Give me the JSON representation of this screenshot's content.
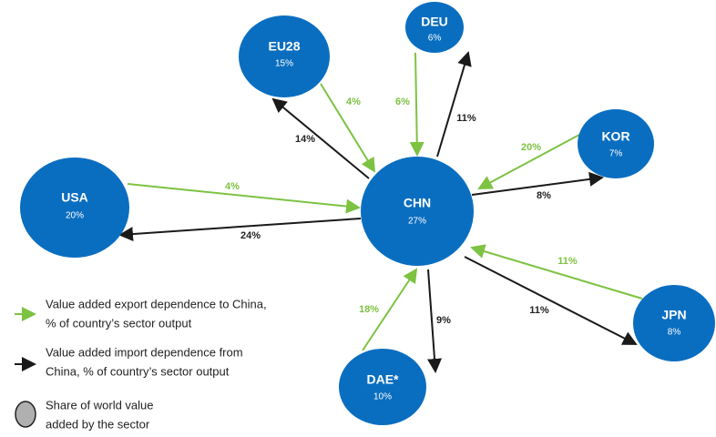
{
  "nodes": [
    {
      "label": "EU28",
      "value": "15%"
    },
    {
      "label": "DEU",
      "value": "6%"
    },
    {
      "label": "KOR",
      "value": "7%"
    },
    {
      "label": "USA",
      "value": "20%"
    },
    {
      "label": "CHN",
      "value": "27%"
    },
    {
      "label": "JPN",
      "value": "8%"
    },
    {
      "label": "DAE*",
      "value": "10%"
    }
  ],
  "edges": [
    {
      "from": "EU28",
      "export": "4%",
      "import": "14%"
    },
    {
      "from": "DEU",
      "export": "6%",
      "import": "11%"
    },
    {
      "from": "KOR",
      "export": "20%",
      "import": "8%"
    },
    {
      "from": "USA",
      "export": "4%",
      "import": "24%"
    },
    {
      "from": "JPN",
      "export": "11%",
      "import": "11%"
    },
    {
      "from": "DAE*",
      "export": "18%",
      "import": "9%"
    }
  ],
  "legend": [
    {
      "lines": [
        "Value added export dependence to China,",
        "% of country’s sector output"
      ]
    },
    {
      "lines": [
        "Value added import dependence from",
        "China, % of country’s sector output"
      ]
    },
    {
      "lines": [
        "Share of world value",
        "added by the sector"
      ]
    }
  ]
}
